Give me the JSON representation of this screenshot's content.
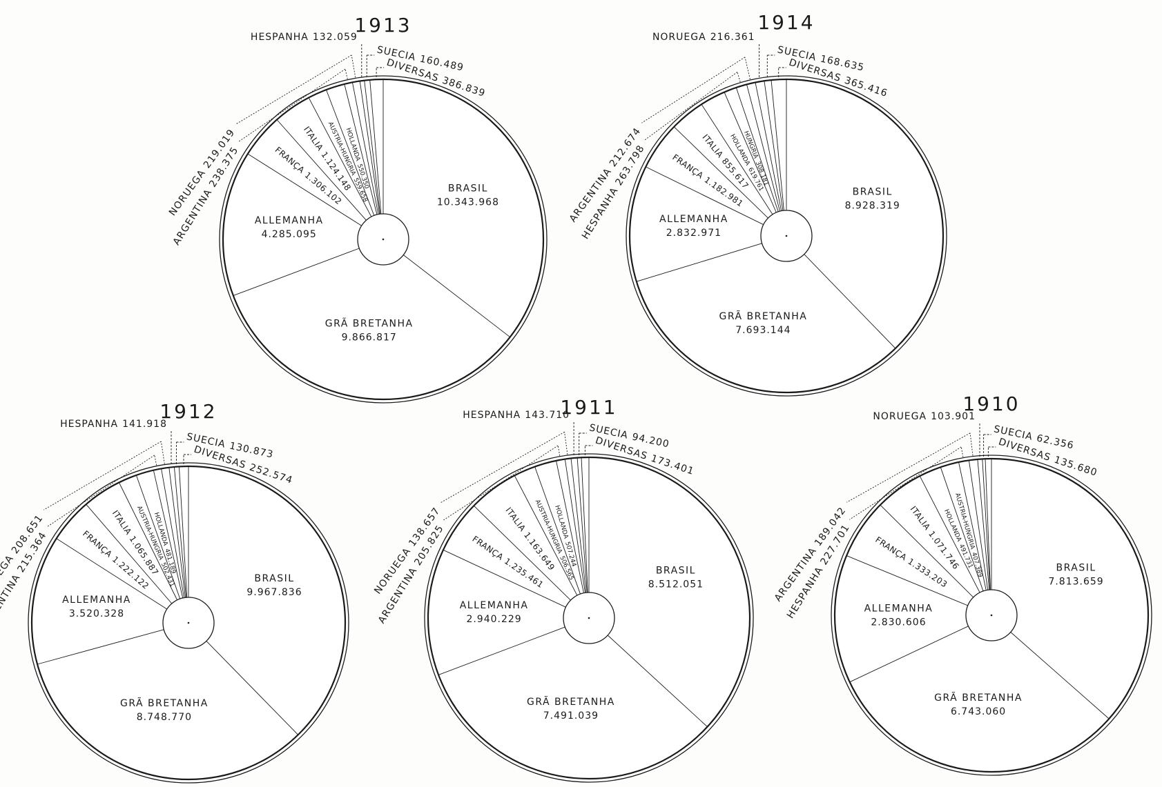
{
  "chart_data": [
    {
      "type": "pie",
      "title": "1913",
      "slices": [
        {
          "name": "BRASIL",
          "value": "10.343.968"
        },
        {
          "name": "GRÃ BRETANHA",
          "value": "9.866.817"
        },
        {
          "name": "ALLEMANHA",
          "value": "4.285.095"
        },
        {
          "name": "FRANÇA",
          "value": "1.306.102"
        },
        {
          "name": "ITALIA",
          "value": "1.124.148"
        },
        {
          "name": "AUSTRIA-HUNGRIA",
          "value": "559.658"
        },
        {
          "name": "HOLLANDA",
          "value": "550.350"
        },
        {
          "name": "ARGENTINA",
          "value": "238.375"
        },
        {
          "name": "NORUEGA",
          "value": "219.019"
        },
        {
          "name": "HESPANHA",
          "value": "132.059"
        },
        {
          "name": "SUECIA",
          "value": "160.489"
        },
        {
          "name": "DIVERSAS",
          "value": "386.839"
        }
      ]
    },
    {
      "type": "pie",
      "title": "1914",
      "slices": [
        {
          "name": "BRASIL",
          "value": "8.928.319"
        },
        {
          "name": "GRÃ BRETANHA",
          "value": "7.693.144"
        },
        {
          "name": "ALLEMANHA",
          "value": "2.832.971"
        },
        {
          "name": "FRANÇA",
          "value": "1.182.981"
        },
        {
          "name": "ITALIA",
          "value": "855.617"
        },
        {
          "name": "HOLLANDA",
          "value": "619.761"
        },
        {
          "name": "HUNGRIA",
          "value": "308.181"
        },
        {
          "name": "HESPANHA",
          "value": "263.798"
        },
        {
          "name": "ARGENTINA",
          "value": "212.674"
        },
        {
          "name": "NORUEGA",
          "value": "216.361"
        },
        {
          "name": "SUECIA",
          "value": "168.635"
        },
        {
          "name": "DIVERSAS",
          "value": "365.416"
        }
      ]
    },
    {
      "type": "pie",
      "title": "1912",
      "slices": [
        {
          "name": "BRASIL",
          "value": "9.967.836"
        },
        {
          "name": "GRÃ BRETANHA",
          "value": "8.748.770"
        },
        {
          "name": "ALLEMANHA",
          "value": "3.520.328"
        },
        {
          "name": "FRANÇA",
          "value": "1.222.122"
        },
        {
          "name": "ITALIA",
          "value": "1.065.887"
        },
        {
          "name": "AUSTRIA-HUNGRIA",
          "value": "502.431"
        },
        {
          "name": "HOLLANDA",
          "value": "481.189"
        },
        {
          "name": "ARGENTINA",
          "value": "215.364"
        },
        {
          "name": "NORUEGA",
          "value": "208.651"
        },
        {
          "name": "HESPANHA",
          "value": "141.918"
        },
        {
          "name": "SUECIA",
          "value": "130.873"
        },
        {
          "name": "DIVERSAS",
          "value": "252.574"
        }
      ]
    },
    {
      "type": "pie",
      "title": "1911",
      "slices": [
        {
          "name": "BRASIL",
          "value": "8.512.051"
        },
        {
          "name": "GRÃ BRETANHA",
          "value": "7.491.039"
        },
        {
          "name": "ALLEMANHA",
          "value": "2.940.229"
        },
        {
          "name": "FRANÇA",
          "value": "1.235.461"
        },
        {
          "name": "ITALIA",
          "value": "1.163.649"
        },
        {
          "name": "AUSTRIA-HUNGRIA",
          "value": "506.565"
        },
        {
          "name": "HOLLANDA",
          "value": "507.244"
        },
        {
          "name": "ARGENTINA",
          "value": "205.825"
        },
        {
          "name": "NORUEGA",
          "value": "138.657"
        },
        {
          "name": "HESPANHA",
          "value": "143.710"
        },
        {
          "name": "SUECIA",
          "value": "94.200"
        },
        {
          "name": "DIVERSAS",
          "value": "173.401"
        }
      ]
    },
    {
      "type": "pie",
      "title": "1910",
      "slices": [
        {
          "name": "BRASIL",
          "value": "7.813.659"
        },
        {
          "name": "GRÃ BRETANHA",
          "value": "6.743.060"
        },
        {
          "name": "ALLEMANHA",
          "value": "2.830.606"
        },
        {
          "name": "FRANÇA",
          "value": "1.333.203"
        },
        {
          "name": "ITALIA",
          "value": "1.071.746"
        },
        {
          "name": "HOLLANDA",
          "value": "491.731"
        },
        {
          "name": "AUSTRIA-HUNGRIA",
          "value": "407.389"
        },
        {
          "name": "HESPANHA",
          "value": "227.701"
        },
        {
          "name": "ARGENTINA",
          "value": "189.042"
        },
        {
          "name": "NORUEGA",
          "value": "103.901"
        },
        {
          "name": "SUECIA",
          "value": "62.356"
        },
        {
          "name": "DIVERSAS",
          "value": "135.680"
        }
      ]
    }
  ],
  "colors": {
    "ink": "#1a1a1a",
    "paper": "#fdfdfb"
  }
}
